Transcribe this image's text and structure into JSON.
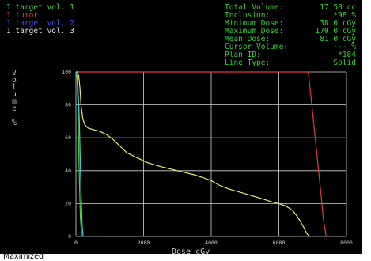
{
  "volumes": [
    {
      "label": "1.target vol. 1",
      "color": "#46d246"
    },
    {
      "label": "1.tumor",
      "color": "#e03c3c"
    },
    {
      "label": "1.target vol. 2",
      "color": "#4646ee"
    },
    {
      "label": "1.target vol. 3",
      "color": "#e0e0e0"
    }
  ],
  "info": [
    {
      "key": "Total Volume:",
      "value": "17.58 cc"
    },
    {
      "key": "Inclusion:",
      "value": "*98 %"
    },
    {
      "key": "Minimum Dose:",
      "value": "38.0 cGy"
    },
    {
      "key": "Maximum Dose:",
      "value": "170.0 cGy"
    },
    {
      "key": "Mean Dose:",
      "value": "81.0 cGy"
    },
    {
      "key": "Cursor Volume:",
      "value": "--- %"
    },
    {
      "key": "Plan ID:",
      "value": "*184"
    },
    {
      "key": "Line Type:",
      "value": "Solid"
    }
  ],
  "status": "Maximized",
  "chart_data": {
    "type": "line",
    "xlabel": "Dose cGy",
    "ylabel": "Volume %",
    "xlim": [
      0,
      8000
    ],
    "ylim": [
      0,
      100
    ],
    "xticks": [
      0,
      2000,
      4000,
      6000,
      8000
    ],
    "yticks": [
      0,
      20,
      40,
      60,
      80,
      100
    ],
    "grid": true,
    "series": [
      {
        "name": "1.tumor",
        "color": "#e03c3c",
        "x": [
          0,
          6870,
          6950,
          7050,
          7150,
          7250,
          7320,
          7400
        ],
        "y": [
          100,
          100,
          85,
          65,
          45,
          25,
          10,
          0
        ]
      },
      {
        "name": "1.target vol. 3",
        "color": "#e8e870",
        "x": [
          0,
          40,
          80,
          120,
          150,
          200,
          260,
          350,
          500,
          700,
          900,
          1100,
          1300,
          1500,
          1800,
          2100,
          2500,
          3000,
          3500,
          3800,
          4000,
          4200,
          4500,
          5000,
          5500,
          5800,
          6000,
          6200,
          6400,
          6550,
          6700,
          6820,
          6900
        ],
        "y": [
          100,
          100,
          98,
          90,
          80,
          72,
          68,
          66,
          65,
          64,
          62,
          59,
          55,
          51,
          48,
          45,
          42.5,
          40,
          37.5,
          35.5,
          34,
          31.5,
          29,
          26,
          23,
          21,
          20,
          18.5,
          16,
          12,
          7,
          2,
          0
        ]
      },
      {
        "name": "1.target vol. 1",
        "color": "#46d246",
        "x": [
          0,
          30,
          60,
          90,
          130,
          170
        ],
        "y": [
          100,
          97,
          80,
          45,
          12,
          0
        ]
      },
      {
        "name": "1.target vol. 2",
        "color": "#3ad2d2",
        "x": [
          0,
          50,
          100,
          140,
          180,
          210
        ],
        "y": [
          100,
          96,
          70,
          35,
          8,
          0
        ]
      }
    ]
  }
}
